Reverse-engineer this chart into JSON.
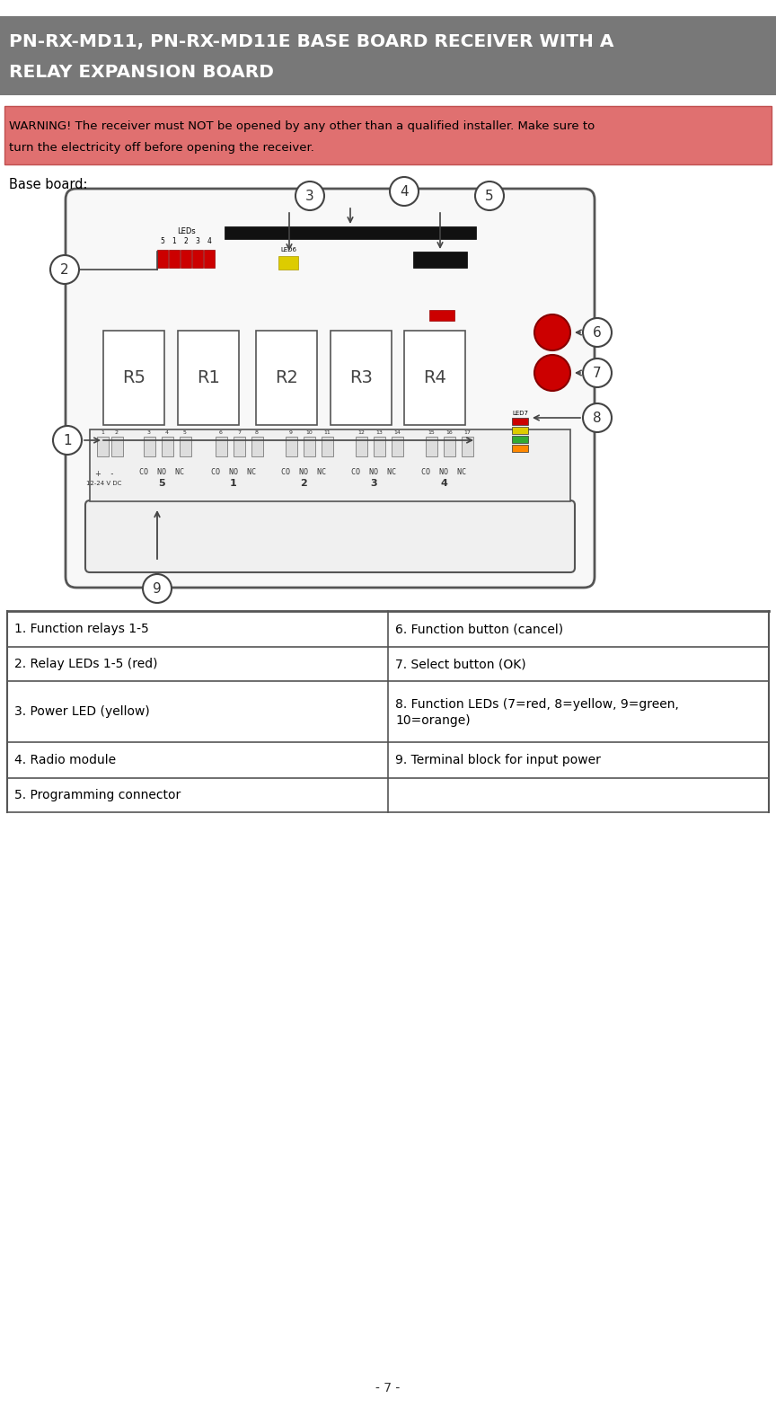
{
  "title_line1": "PN-RX-MD11, PN-RX-MD11E BASE BOARD RECEIVER WITH A",
  "title_line2": "RELAY EXPANSION BOARD",
  "title_bg": "#787878",
  "title_color": "#ffffff",
  "warning_line1": "WARNING! The receiver must NOT be opened by any other than a qualified installer. Make sure to",
  "warning_line2": "turn the electricity off before opening the receiver.",
  "warning_bg": "#e07070",
  "warning_color": "#000000",
  "baseboard_label": "Base board:",
  "page_number": "- 7 -",
  "table_rows": [
    [
      "1. Function relays 1-5",
      "6. Function button (cancel)"
    ],
    [
      "2. Relay LEDs 1-5 (red)",
      "7. Select button (OK)"
    ],
    [
      "3. Power LED (yellow)",
      "8. Function LEDs (7=red, 8=yellow, 9=green,\n10=orange)"
    ],
    [
      "4. Radio module",
      "9. Terminal block for input power"
    ],
    [
      "5. Programming connector",
      ""
    ]
  ],
  "relay_labels": [
    "R5",
    "R1",
    "R2",
    "R3",
    "R4"
  ],
  "terminal_labels": [
    "5",
    "1",
    "2",
    "3",
    "4"
  ],
  "board_bg": "#f8f8f8",
  "board_edge": "#444444"
}
